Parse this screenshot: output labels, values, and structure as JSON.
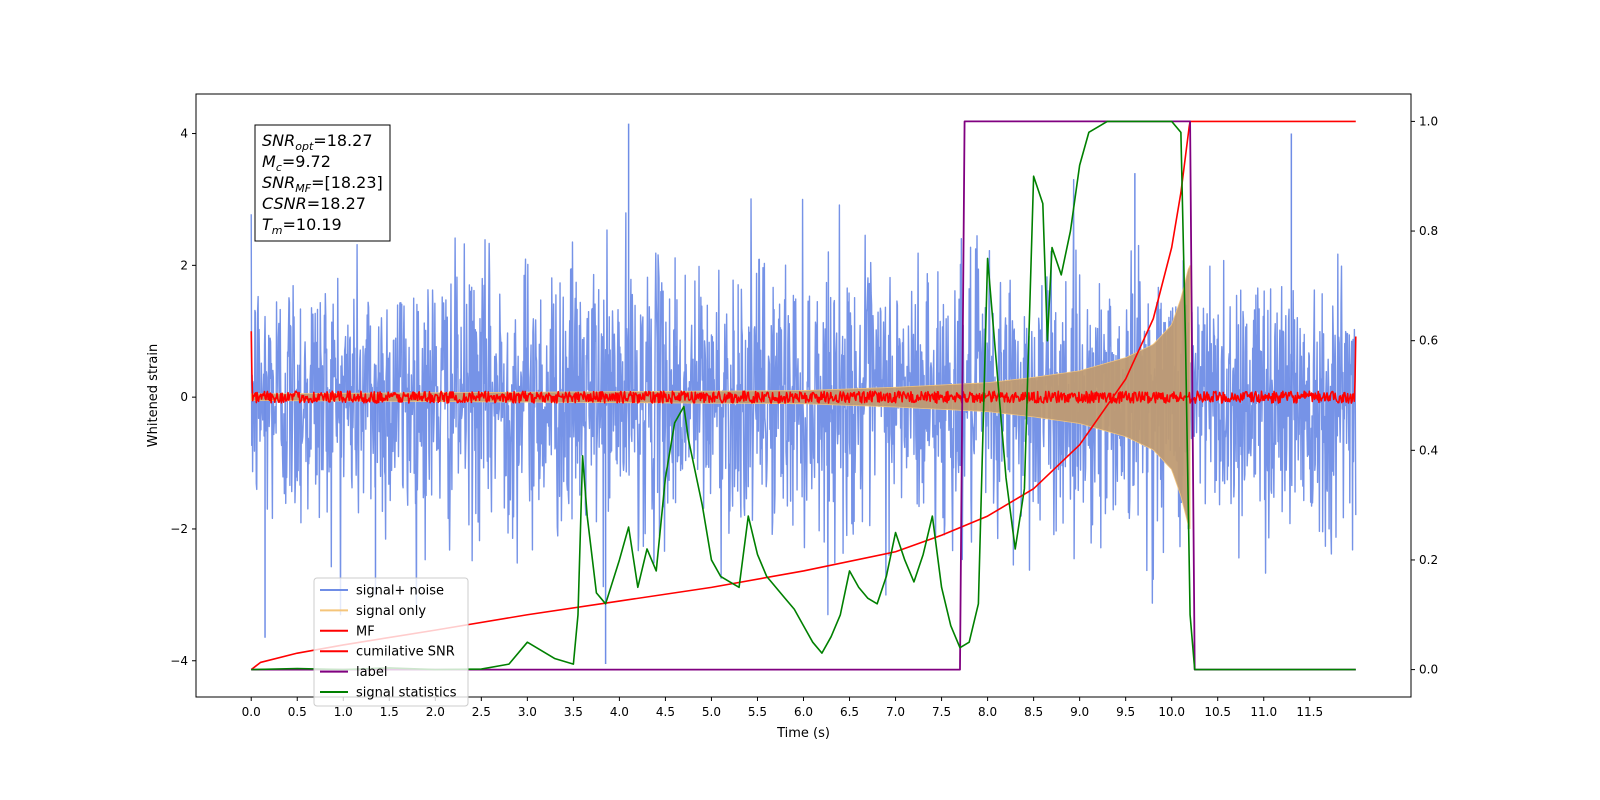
{
  "chart_data": {
    "type": "line",
    "xlabel": "Time (s)",
    "ylabel": "Whitened strain",
    "xlim": [
      -0.6,
      12.6
    ],
    "ylim": [
      -4.55,
      4.6
    ],
    "y2lim": [
      -0.05,
      1.05
    ],
    "x_ticks": [
      "0.0",
      "0.5",
      "1.0",
      "1.5",
      "2.0",
      "2.5",
      "3.0",
      "3.5",
      "4.0",
      "4.5",
      "5.0",
      "5.5",
      "6.0",
      "6.5",
      "7.0",
      "7.5",
      "8.0",
      "8.5",
      "9.0",
      "9.5",
      "10.0",
      "10.5",
      "11.0",
      "11.5"
    ],
    "y_ticks": [
      "4",
      "2",
      "0",
      "−2",
      "−4"
    ],
    "y2_ticks": [
      "1.0",
      "0.8",
      "0.6",
      "0.4",
      "0.2",
      "0.0"
    ],
    "colors": {
      "signal_noise": "#6f8de6",
      "signal_only": "#f5c57a",
      "mf": "#ff0000",
      "cum_snr": "#ff0000",
      "label": "#800080",
      "stats": "#008000"
    },
    "legend": {
      "placement": "lower-left",
      "entries": [
        "signal+ noise",
        "signal only",
        "MF",
        "cumilative SNR",
        "label",
        "signal statistics"
      ]
    },
    "annotation": {
      "placement": "upper-left",
      "lines": [
        {
          "name": "SNR",
          "sub": "opt",
          "value": "=18.27"
        },
        {
          "name": "M",
          "sub": "c",
          "value": "=9.72"
        },
        {
          "name": "SNR",
          "sub": "MF",
          "value": "=[18.23]"
        },
        {
          "name": "CSNR",
          "sub": "",
          "value": "=18.27"
        },
        {
          "name": "T",
          "sub": "m",
          "value": "=10.19"
        }
      ]
    },
    "series": [
      {
        "name": "signal+ noise",
        "axis": "left",
        "x_range": [
          0.0,
          12.0
        ],
        "noise_sigma": 1.0,
        "peaks": [
          [
            4.1,
            4.15
          ],
          [
            3.85,
            -4.05
          ],
          [
            11.3,
            4.0
          ],
          [
            0.15,
            -3.65
          ],
          [
            9.6,
            3.4
          ],
          [
            1.35,
            -3.0
          ]
        ]
      },
      {
        "name": "signal only",
        "axis": "left",
        "x_range": [
          0.0,
          10.2
        ],
        "envelope": {
          "x": [
            0.0,
            6.0,
            7.0,
            8.0,
            8.5,
            9.0,
            9.5,
            9.8,
            10.0,
            10.1,
            10.19
          ],
          "y": [
            0.05,
            0.1,
            0.15,
            0.22,
            0.3,
            0.4,
            0.6,
            0.8,
            1.1,
            1.5,
            2.0
          ]
        }
      },
      {
        "name": "MF",
        "axis": "left",
        "x_range": [
          0.0,
          12.0
        ],
        "noise_amp": 0.05,
        "edges": [
          [
            0.0,
            1.0
          ],
          [
            12.0,
            0.92
          ]
        ]
      },
      {
        "name": "cumilative SNR",
        "axis": "right",
        "x": [
          0.0,
          0.1,
          0.5,
          1.0,
          2.0,
          3.0,
          4.0,
          5.0,
          6.0,
          7.0,
          7.5,
          8.0,
          8.5,
          9.0,
          9.5,
          9.8,
          10.0,
          10.1,
          10.19,
          10.2,
          12.0
        ],
        "y": [
          0.0,
          0.013,
          0.03,
          0.045,
          0.072,
          0.1,
          0.125,
          0.15,
          0.18,
          0.215,
          0.245,
          0.28,
          0.33,
          0.41,
          0.53,
          0.64,
          0.77,
          0.87,
          0.99,
          1.0,
          1.0
        ]
      },
      {
        "name": "label",
        "axis": "right",
        "x": [
          0.0,
          7.7,
          7.75,
          10.2,
          10.25,
          12.0
        ],
        "y": [
          0.0,
          0.0,
          1.0,
          1.0,
          0.0,
          0.0
        ]
      },
      {
        "name": "signal statistics",
        "axis": "right",
        "x": [
          0.0,
          0.5,
          1.0,
          1.5,
          2.0,
          2.5,
          2.8,
          3.0,
          3.1,
          3.3,
          3.5,
          3.55,
          3.6,
          3.65,
          3.75,
          3.85,
          4.0,
          4.1,
          4.2,
          4.3,
          4.4,
          4.5,
          4.6,
          4.7,
          4.75,
          4.9,
          5.0,
          5.1,
          5.2,
          5.3,
          5.4,
          5.5,
          5.6,
          5.7,
          5.8,
          5.9,
          6.0,
          6.1,
          6.2,
          6.3,
          6.4,
          6.5,
          6.6,
          6.7,
          6.8,
          6.9,
          7.0,
          7.1,
          7.2,
          7.3,
          7.4,
          7.5,
          7.6,
          7.7,
          7.8,
          7.9,
          8.0,
          8.1,
          8.2,
          8.3,
          8.4,
          8.5,
          8.6,
          8.65,
          8.7,
          8.8,
          8.9,
          9.0,
          9.1,
          9.3,
          9.5,
          9.8,
          10.0,
          10.1,
          10.15,
          10.2,
          10.25,
          11.0,
          11.5,
          12.0
        ],
        "y": [
          0.0,
          0.002,
          0.0,
          0.003,
          0.0,
          0.001,
          0.01,
          0.05,
          0.04,
          0.02,
          0.01,
          0.1,
          0.39,
          0.28,
          0.14,
          0.12,
          0.2,
          0.26,
          0.15,
          0.22,
          0.18,
          0.35,
          0.45,
          0.48,
          0.42,
          0.3,
          0.2,
          0.17,
          0.16,
          0.15,
          0.28,
          0.21,
          0.17,
          0.15,
          0.13,
          0.11,
          0.08,
          0.05,
          0.03,
          0.06,
          0.1,
          0.18,
          0.15,
          0.13,
          0.12,
          0.17,
          0.25,
          0.2,
          0.16,
          0.21,
          0.28,
          0.15,
          0.08,
          0.04,
          0.05,
          0.12,
          0.75,
          0.55,
          0.35,
          0.22,
          0.33,
          0.9,
          0.85,
          0.6,
          0.77,
          0.72,
          0.8,
          0.92,
          0.98,
          1.0,
          1.0,
          1.0,
          1.0,
          0.98,
          0.6,
          0.1,
          0.0,
          0.0,
          0.0,
          0.0
        ]
      }
    ]
  }
}
